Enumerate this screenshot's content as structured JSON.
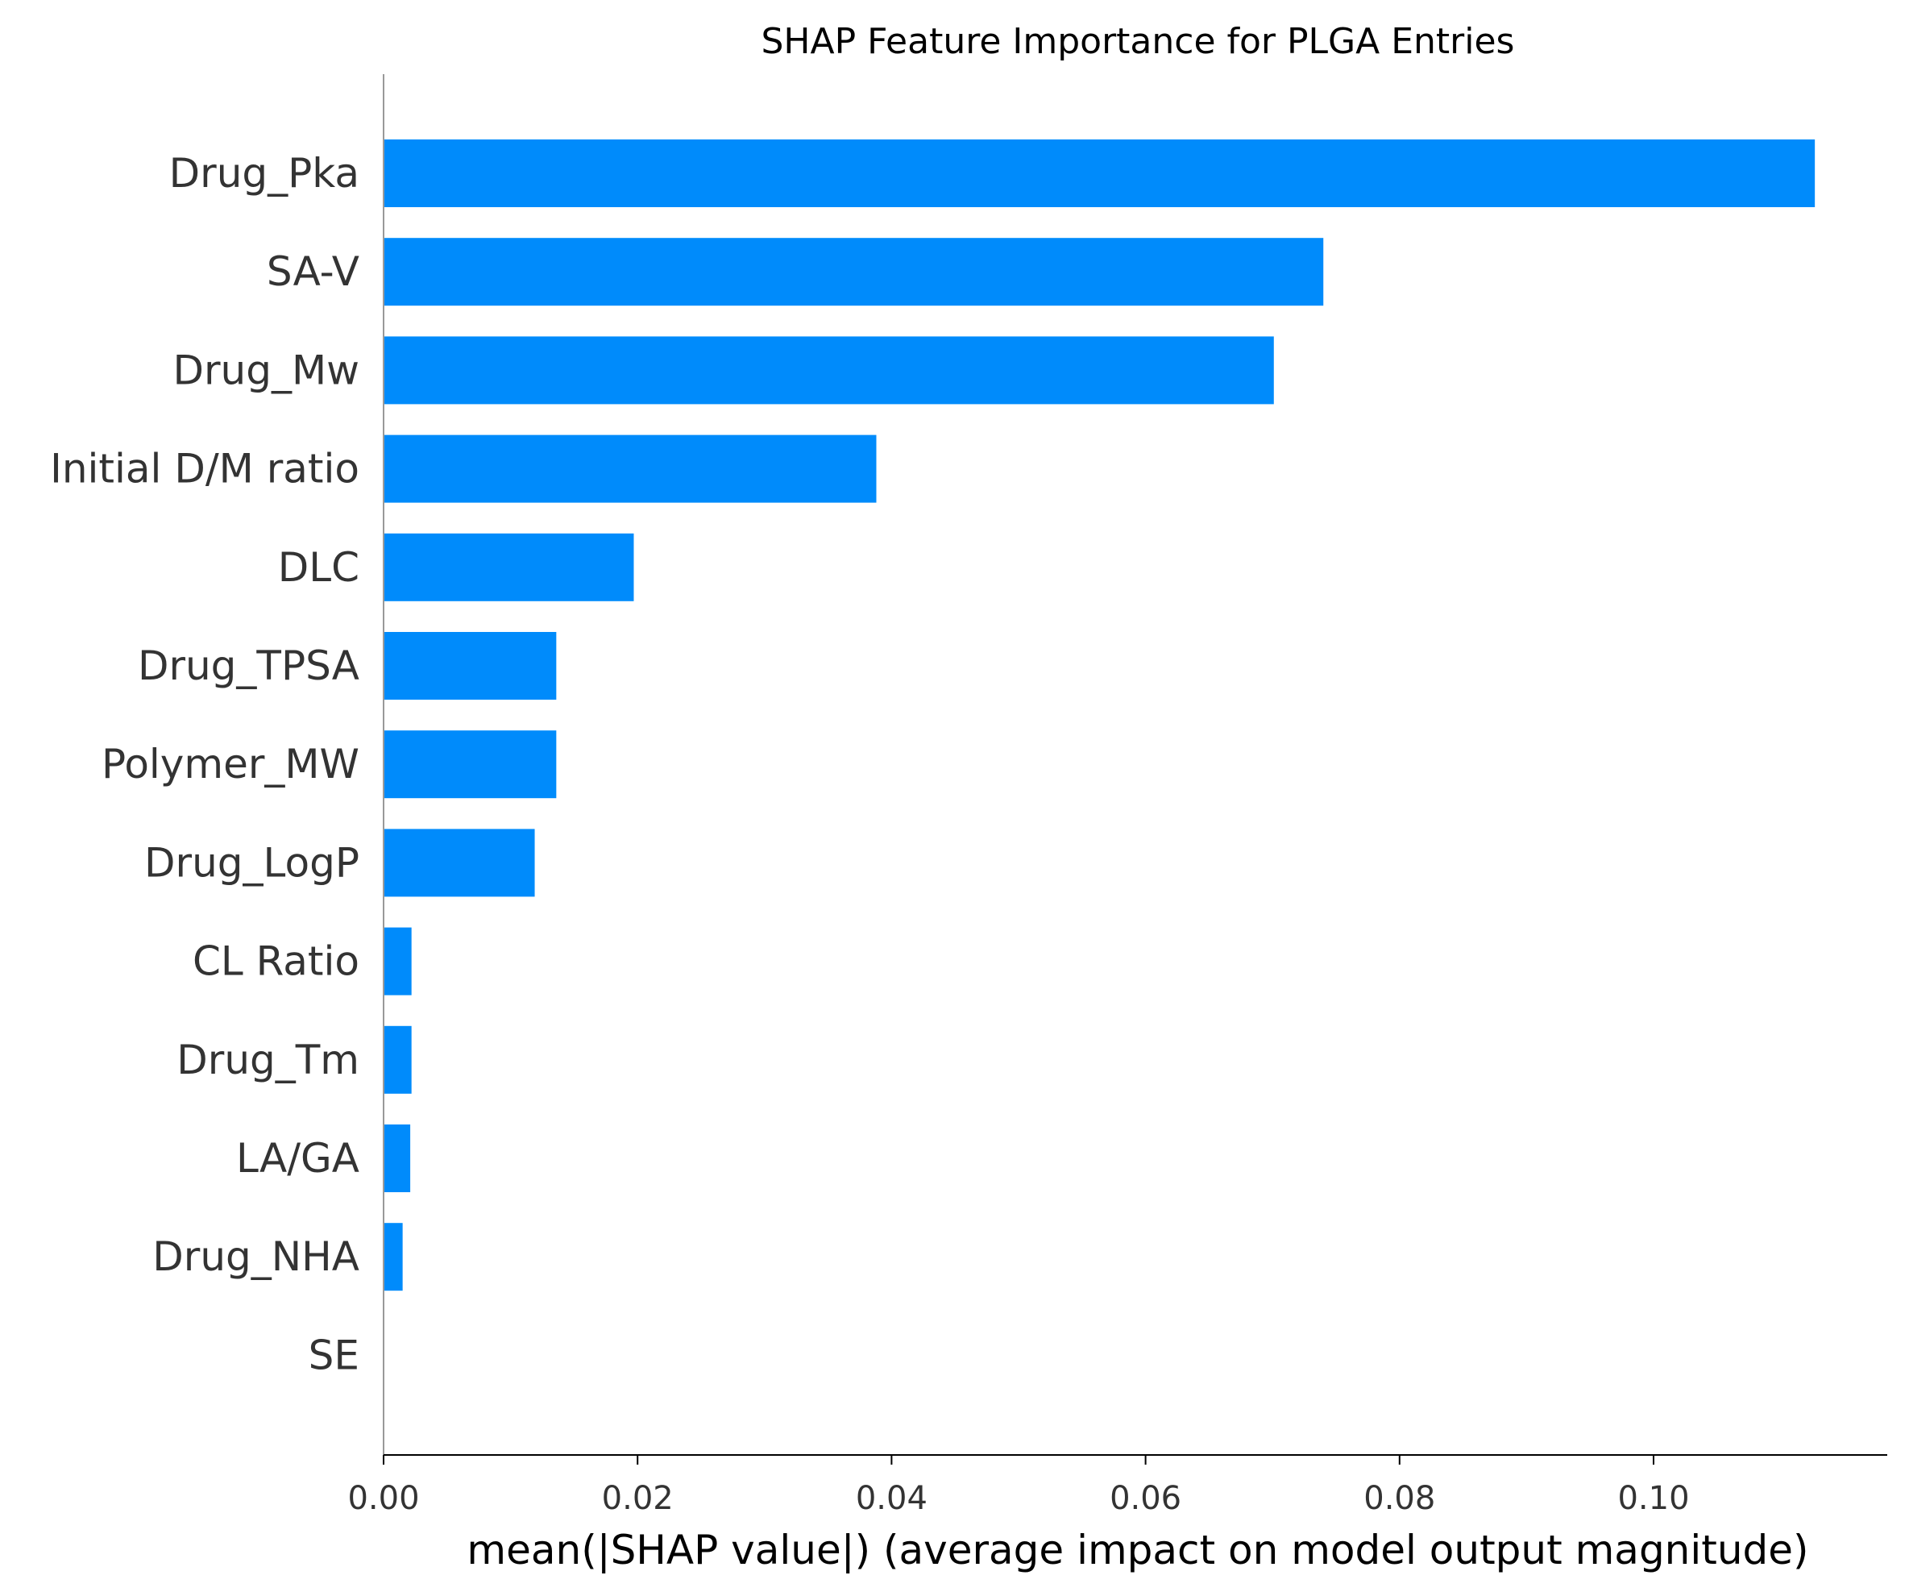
{
  "chart_data": {
    "type": "bar",
    "orientation": "horizontal",
    "title": "SHAP Feature Importance for PLGA Entries",
    "xlabel": "mean(|SHAP value|) (average impact on model output magnitude)",
    "ylabel": "",
    "categories": [
      "Drug_Pka",
      "SA-V",
      "Drug_Mw",
      "Initial D/M ratio",
      "DLC",
      "Drug_TPSA",
      "Polymer_MW",
      "Drug_LogP",
      "CL Ratio",
      "Drug_Tm",
      "LA/GA",
      "Drug_NHA",
      "SE"
    ],
    "values": [
      0.1127,
      0.074,
      0.0701,
      0.0388,
      0.0197,
      0.0136,
      0.0136,
      0.0119,
      0.0022,
      0.0022,
      0.0021,
      0.0015,
      0.0
    ],
    "xticks": [
      "0.00",
      "0.02",
      "0.04",
      "0.06",
      "0.08",
      "0.10"
    ],
    "xtick_values": [
      0,
      0.02,
      0.04,
      0.06,
      0.08,
      0.1
    ],
    "xlim": [
      0,
      0.1184
    ],
    "grid": false,
    "legend": "none",
    "bar_color": "#008bfb",
    "axis_color": "#000000",
    "left_axis_color": "#999999",
    "tick_label_color": "#333333"
  }
}
